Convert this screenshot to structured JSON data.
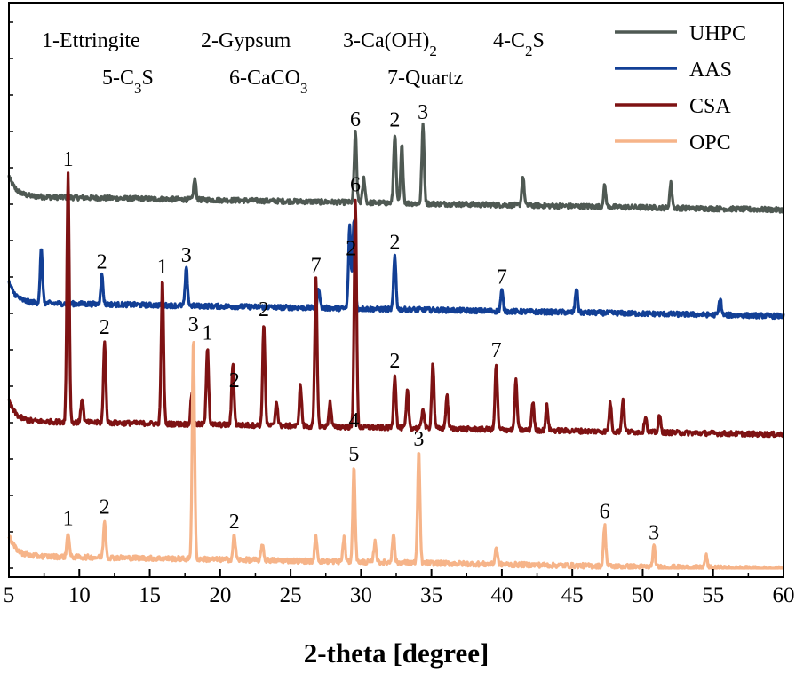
{
  "chart_data": {
    "type": "line",
    "xlabel": "2-theta [degree]",
    "xlim": [
      5,
      60
    ],
    "x_ticks": [
      "5",
      "10",
      "15",
      "20",
      "25",
      "30",
      "35",
      "40",
      "45",
      "50",
      "55",
      "60"
    ],
    "legend_position": "top-right",
    "phase_key": [
      [
        "1-Ettringite",
        "2-Gypsum",
        "3-Ca(OH)2",
        "4-C2S"
      ],
      [
        "5-C3S",
        "6-CaCO3",
        "7-Quartz"
      ]
    ],
    "series": [
      {
        "name": "UHPC",
        "color": "#4f5953",
        "baseline": 0.88,
        "peaks": [
          [
            18.2,
            0.05
          ],
          [
            29.6,
            0.17
          ],
          [
            30.2,
            0.06
          ],
          [
            32.4,
            0.17
          ],
          [
            32.9,
            0.14
          ],
          [
            34.4,
            0.19
          ],
          [
            41.5,
            0.07
          ],
          [
            47.3,
            0.05
          ],
          [
            52.0,
            0.06
          ]
        ],
        "labels": [
          [
            "6",
            29.6
          ],
          [
            "2",
            32.4
          ],
          [
            "3",
            34.4
          ]
        ]
      },
      {
        "name": "AAS",
        "color": "#123f95",
        "baseline": 0.62,
        "peaks": [
          [
            7.3,
            0.13
          ],
          [
            11.6,
            0.07
          ],
          [
            17.6,
            0.09
          ],
          [
            27.0,
            0.05
          ],
          [
            29.2,
            0.2
          ],
          [
            29.5,
            0.22
          ],
          [
            32.4,
            0.13
          ],
          [
            40.0,
            0.05
          ],
          [
            45.3,
            0.06
          ],
          [
            55.5,
            0.04
          ]
        ],
        "labels": [
          [
            "2",
            11.6
          ],
          [
            "3",
            17.6
          ],
          [
            "2",
            29.3
          ],
          [
            "2",
            32.4
          ],
          [
            "7",
            40.0
          ]
        ]
      },
      {
        "name": "CSA",
        "color": "#7e1213",
        "baseline": 0.33,
        "peaks": [
          [
            9.2,
            0.61
          ],
          [
            10.2,
            0.06
          ],
          [
            11.8,
            0.2
          ],
          [
            15.9,
            0.35
          ],
          [
            18.0,
            0.08
          ],
          [
            19.1,
            0.19
          ],
          [
            20.9,
            0.15
          ],
          [
            23.1,
            0.25
          ],
          [
            24.0,
            0.06
          ],
          [
            25.7,
            0.1
          ],
          [
            26.8,
            0.36
          ],
          [
            27.8,
            0.06
          ],
          [
            29.6,
            0.56
          ],
          [
            32.4,
            0.13
          ],
          [
            33.3,
            0.09
          ],
          [
            34.4,
            0.05
          ],
          [
            35.1,
            0.16
          ],
          [
            36.1,
            0.08
          ],
          [
            39.6,
            0.16
          ],
          [
            41.0,
            0.12
          ],
          [
            42.2,
            0.07
          ],
          [
            43.2,
            0.06
          ],
          [
            47.7,
            0.07
          ],
          [
            48.6,
            0.08
          ],
          [
            50.2,
            0.04
          ],
          [
            51.2,
            0.04
          ]
        ],
        "labels": [
          [
            "1",
            9.2
          ],
          [
            "2",
            11.8
          ],
          [
            "1",
            15.9
          ],
          [
            "1",
            19.1
          ],
          [
            "2",
            21.0
          ],
          [
            "2",
            23.1
          ],
          [
            "7",
            26.8
          ],
          [
            "6",
            29.6
          ],
          [
            "2",
            32.4
          ],
          [
            "7",
            39.6
          ]
        ]
      },
      {
        "name": "OPC",
        "color": "#f6b489",
        "baseline": 0.0,
        "peaks": [
          [
            9.2,
            0.06
          ],
          [
            11.8,
            0.09
          ],
          [
            18.1,
            0.54
          ],
          [
            21.0,
            0.06
          ],
          [
            23.0,
            0.04
          ],
          [
            26.8,
            0.06
          ],
          [
            28.8,
            0.06
          ],
          [
            29.5,
            0.23
          ],
          [
            31.0,
            0.05
          ],
          [
            32.3,
            0.07
          ],
          [
            34.1,
            0.27
          ],
          [
            39.6,
            0.04
          ],
          [
            47.3,
            0.1
          ],
          [
            50.8,
            0.05
          ],
          [
            54.5,
            0.03
          ]
        ],
        "labels": [
          [
            "1",
            9.2
          ],
          [
            "2",
            11.8
          ],
          [
            "3",
            18.1
          ],
          [
            "2",
            21.0
          ],
          [
            "3",
            34.1
          ],
          [
            "6",
            47.3
          ],
          [
            "3",
            50.8
          ]
        ],
        "stacked_labels": [
          {
            "x": 29.5,
            "labels": [
              "4",
              "5"
            ]
          }
        ]
      }
    ]
  }
}
